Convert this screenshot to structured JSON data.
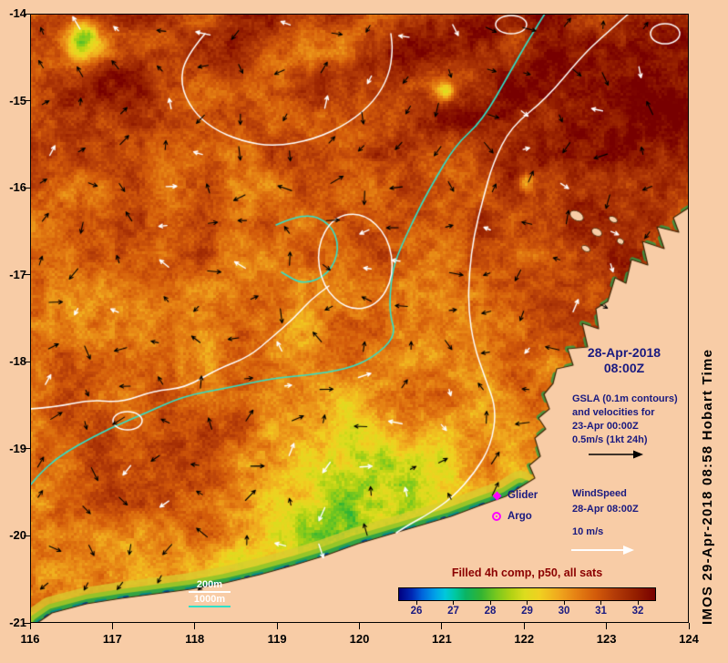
{
  "map": {
    "x_ticks": [
      "116",
      "117",
      "118",
      "119",
      "120",
      "121",
      "122",
      "123",
      "124"
    ],
    "y_ticks": [
      "-14",
      "-15",
      "-16",
      "-17",
      "-18",
      "-19",
      "-20",
      "-21"
    ]
  },
  "annotations": {
    "date_line1": "28-Apr-2018",
    "date_line2": "08:00Z",
    "gsla_line1": "GSLA (0.1m contours)",
    "gsla_line2": "and velocities for",
    "gsla_line3": "23-Apr 00:00Z",
    "gsla_line4": "0.5m/s (1kt 24h)",
    "glider_label": "Glider",
    "argo_label": "Argo",
    "wind_line1": "WindSpeed",
    "wind_line2": "28-Apr 08:00Z",
    "wind_scale_label": "10 m/s",
    "depth_200_label": "200m",
    "depth_1000_label": "1000m",
    "watermark": "IMOS 29-Apr-2018 08:58 Hobart Time"
  },
  "colorbar": {
    "title": "Filled 4h comp, p50, all sats",
    "tick_labels": [
      "26",
      "27",
      "28",
      "29",
      "30",
      "31",
      "32"
    ],
    "stops": [
      {
        "p": 0.0,
        "c": "#000080"
      },
      {
        "p": 0.05,
        "c": "#0028b4"
      },
      {
        "p": 0.09,
        "c": "#0064dc"
      },
      {
        "p": 0.14,
        "c": "#00a0e8"
      },
      {
        "p": 0.18,
        "c": "#00c8dc"
      },
      {
        "p": 0.22,
        "c": "#00c8a0"
      },
      {
        "p": 0.26,
        "c": "#0ab464"
      },
      {
        "p": 0.32,
        "c": "#32b432"
      },
      {
        "p": 0.38,
        "c": "#78c81e"
      },
      {
        "p": 0.44,
        "c": "#b4d214"
      },
      {
        "p": 0.49,
        "c": "#dcdc1e"
      },
      {
        "p": 0.55,
        "c": "#f0d020"
      },
      {
        "p": 0.62,
        "c": "#f0aa1e"
      },
      {
        "p": 0.69,
        "c": "#e68214"
      },
      {
        "p": 0.77,
        "c": "#d25a0a"
      },
      {
        "p": 0.84,
        "c": "#b43c08"
      },
      {
        "p": 0.92,
        "c": "#962000"
      },
      {
        "p": 1.0,
        "c": "#780000"
      }
    ]
  },
  "chart_data": {
    "type": "heatmap",
    "x_range": [
      116,
      124
    ],
    "y_range": [
      -21,
      -14
    ],
    "colorbar_title": "Filled 4h comp, p50, all sats",
    "colorbar_ticks": [
      26,
      27,
      28,
      29,
      30,
      31,
      32
    ]
  },
  "colors": {
    "background": "#f8cca6",
    "land": "#f8cca6",
    "coast_line": "#402808",
    "annotation_navy": "#1a1a80",
    "title_red": "#8b0000",
    "contour_white": "#ffffff",
    "contour_cyan": "#30e0c8",
    "marker_magenta": "#ff00ff"
  }
}
